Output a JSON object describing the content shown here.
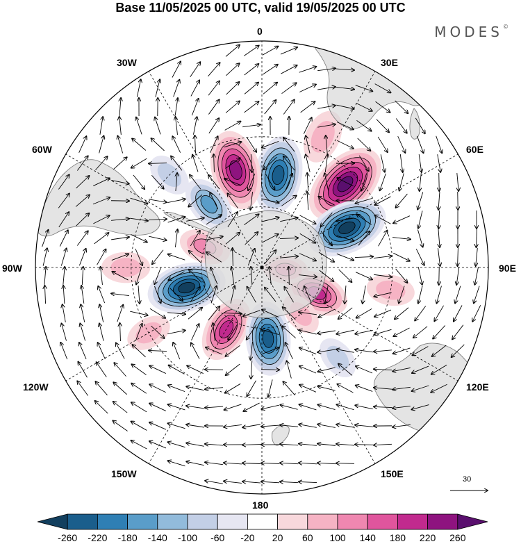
{
  "title": "Base 11/05/2025 00 UTC, valid 19/05/2025 00 UTC",
  "brand": "MODES",
  "brand_mark": "©",
  "longitude_labels": {
    "lon_0": "0",
    "lon_30e": "30E",
    "lon_60e": "60E",
    "lon_90e": "90E",
    "lon_120e": "120E",
    "lon_150e": "150E",
    "lon_180": "180",
    "lon_150w": "150W",
    "lon_120w": "120W",
    "lon_90w": "90W",
    "lon_60w": "60W",
    "lon_30w": "30W"
  },
  "reference_vector": "30",
  "colorbar": {
    "ticks": [
      "-260",
      "-220",
      "-180",
      "-140",
      "-100",
      "-60",
      "-20",
      "20",
      "60",
      "100",
      "140",
      "180",
      "220",
      "260"
    ],
    "colors": [
      "#123f5e",
      "#1a5e8c",
      "#2f7fb4",
      "#5a9dc9",
      "#92bbdb",
      "#c3cfe6",
      "#e6e6f2",
      "#ffffff",
      "#f8d8dc",
      "#f6b3c4",
      "#ef87b0",
      "#e0559d",
      "#c12a8e",
      "#8e137f",
      "#5a0f6e"
    ]
  },
  "map": {
    "projection": "south-polar-stereographic",
    "colors": {
      "land": "#d9d9d9",
      "coast": "#7f7f7f",
      "contour": "#000000",
      "graticule": "#000000"
    },
    "anomalies": [
      {
        "lon": 45,
        "lat": -35,
        "value": 260
      },
      {
        "lon": 65,
        "lat": -45,
        "value": -260
      },
      {
        "lon": 10,
        "lat": -45,
        "value": -240
      },
      {
        "lon": -15,
        "lat": -42,
        "value": 240
      },
      {
        "lon": -40,
        "lat": -50,
        "value": -150
      },
      {
        "lon": -70,
        "lat": -60,
        "value": 130
      },
      {
        "lon": -105,
        "lat": -52,
        "value": -260
      },
      {
        "lon": -150,
        "lat": -55,
        "value": 200
      },
      {
        "lon": 175,
        "lat": -55,
        "value": -240
      },
      {
        "lon": 115,
        "lat": -60,
        "value": 200
      },
      {
        "lon": 95,
        "lat": -78,
        "value": 120
      },
      {
        "lon": 140,
        "lat": -60,
        "value": 90
      },
      {
        "lon": 100,
        "lat": -30,
        "value": 70
      },
      {
        "lon": 25,
        "lat": -25,
        "value": 90
      },
      {
        "lon": 140,
        "lat": -35,
        "value": -60
      },
      {
        "lon": -90,
        "lat": -28,
        "value": 70
      },
      {
        "lon": -45,
        "lat": -30,
        "value": -60
      },
      {
        "lon": -120,
        "lat": -30,
        "value": 60
      }
    ]
  }
}
